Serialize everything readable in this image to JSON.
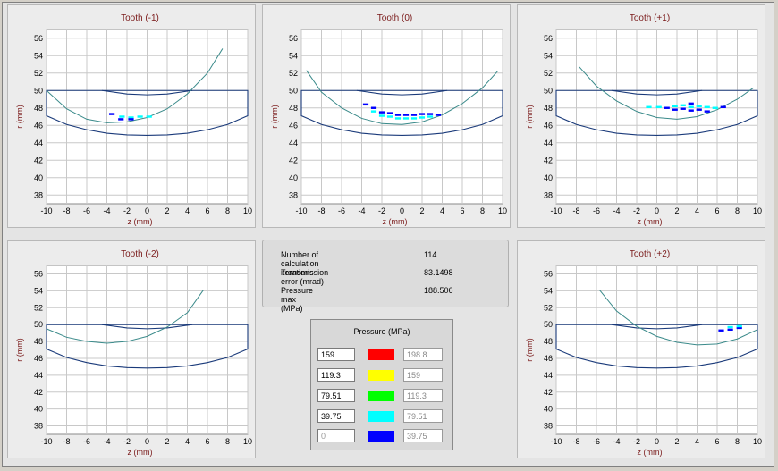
{
  "chart_data": [
    {
      "type": "scatter",
      "title": "Tooth (-1)",
      "xlabel": "z (mm)",
      "ylabel": "r (mm)",
      "xlim": [
        -10,
        10
      ],
      "ylim": [
        37,
        57
      ],
      "xticks": [
        "-10",
        "-8",
        "-6",
        "-4",
        "-2",
        "0",
        "2",
        "4",
        "6",
        "8",
        "10"
      ],
      "yticks": [
        "38",
        "40",
        "42",
        "44",
        "46",
        "48",
        "50",
        "52",
        "54",
        "56"
      ],
      "contact_curve": [
        [
          -10,
          50
        ],
        [
          -8,
          47.9
        ],
        [
          -6,
          46.7
        ],
        [
          -4,
          46.3
        ],
        [
          -2,
          46.4
        ],
        [
          0,
          46.9
        ],
        [
          2,
          47.9
        ],
        [
          4,
          49.6
        ],
        [
          6,
          52
        ],
        [
          7.5,
          54.8
        ]
      ],
      "pressure_cells": [
        {
          "z": -3.5,
          "r": 47.3,
          "p": 20
        },
        {
          "z": -2.5,
          "r": 47.0,
          "p": 50
        },
        {
          "z": -1.6,
          "r": 46.9,
          "p": 55
        },
        {
          "z": -0.7,
          "r": 47.0,
          "p": 65
        },
        {
          "z": 0.2,
          "r": 47.0,
          "p": 70
        },
        {
          "z": -2.6,
          "r": 46.7,
          "p": 10
        },
        {
          "z": -1.6,
          "r": 46.7,
          "p": 15
        }
      ]
    },
    {
      "type": "scatter",
      "title": "Tooth (0)",
      "xlabel": "z (mm)",
      "ylabel": "r (mm)",
      "xlim": [
        -10,
        10
      ],
      "ylim": [
        37,
        57
      ],
      "xticks": [
        "-10",
        "-8",
        "-6",
        "-4",
        "-2",
        "0",
        "2",
        "4",
        "6",
        "8",
        "10"
      ],
      "yticks": [
        "38",
        "40",
        "42",
        "44",
        "46",
        "48",
        "50",
        "52",
        "54",
        "56"
      ],
      "contact_curve": [
        [
          -9.5,
          52.3
        ],
        [
          -8,
          49.8
        ],
        [
          -6,
          48
        ],
        [
          -4,
          46.8
        ],
        [
          -2,
          46.2
        ],
        [
          0,
          46.1
        ],
        [
          2,
          46.4
        ],
        [
          4,
          47.2
        ],
        [
          6,
          48.5
        ],
        [
          8,
          50.3
        ],
        [
          9.5,
          52.2
        ]
      ],
      "pressure_cells": [
        {
          "z": -3.6,
          "r": 48.4,
          "p": 15
        },
        {
          "z": -2.8,
          "r": 48.0,
          "p": 15
        },
        {
          "z": -2.8,
          "r": 47.6,
          "p": 50
        },
        {
          "z": -2.0,
          "r": 47.5,
          "p": 15
        },
        {
          "z": -2.0,
          "r": 47.1,
          "p": 60
        },
        {
          "z": -1.2,
          "r": 47.4,
          "p": 15
        },
        {
          "z": -1.2,
          "r": 47.0,
          "p": 60
        },
        {
          "z": -0.4,
          "r": 47.2,
          "p": 15
        },
        {
          "z": -0.4,
          "r": 46.8,
          "p": 55
        },
        {
          "z": 0.4,
          "r": 47.2,
          "p": 10
        },
        {
          "z": 0.4,
          "r": 46.8,
          "p": 55
        },
        {
          "z": 1.2,
          "r": 47.2,
          "p": 15
        },
        {
          "z": 1.2,
          "r": 46.8,
          "p": 55
        },
        {
          "z": 2.0,
          "r": 47.3,
          "p": 15
        },
        {
          "z": 2.0,
          "r": 46.9,
          "p": 50
        },
        {
          "z": 2.8,
          "r": 47.3,
          "p": 15
        },
        {
          "z": 2.8,
          "r": 47.0,
          "p": 45
        },
        {
          "z": 3.6,
          "r": 47.2,
          "p": 15
        }
      ]
    },
    {
      "type": "scatter",
      "title": "Tooth (+1)",
      "xlabel": "z (mm)",
      "ylabel": "r (mm)",
      "xlim": [
        -10,
        10
      ],
      "ylim": [
        37,
        57
      ],
      "xticks": [
        "-10",
        "-8",
        "-6",
        "-4",
        "-2",
        "0",
        "2",
        "4",
        "6",
        "8",
        "10"
      ],
      "yticks": [
        "38",
        "40",
        "42",
        "44",
        "46",
        "48",
        "50",
        "52",
        "54",
        "56"
      ],
      "contact_curve": [
        [
          -7.7,
          52.7
        ],
        [
          -6,
          50.5
        ],
        [
          -4,
          48.8
        ],
        [
          -2,
          47.6
        ],
        [
          0,
          46.9
        ],
        [
          2,
          46.7
        ],
        [
          4,
          47
        ],
        [
          6,
          47.8
        ],
        [
          8,
          49
        ],
        [
          9.6,
          50.3
        ]
      ],
      "pressure_cells": [
        {
          "z": -0.8,
          "r": 48.1,
          "p": 50
        },
        {
          "z": 0.2,
          "r": 48.1,
          "p": 45
        },
        {
          "z": 1.0,
          "r": 48.0,
          "p": 15
        },
        {
          "z": 1.8,
          "r": 48.2,
          "p": 45
        },
        {
          "z": 1.8,
          "r": 47.8,
          "p": 20
        },
        {
          "z": 2.6,
          "r": 48.3,
          "p": 50
        },
        {
          "z": 2.6,
          "r": 47.9,
          "p": 20
        },
        {
          "z": 3.4,
          "r": 48.5,
          "p": 15
        },
        {
          "z": 3.4,
          "r": 48.1,
          "p": 50
        },
        {
          "z": 3.4,
          "r": 47.7,
          "p": 15
        },
        {
          "z": 4.2,
          "r": 48.2,
          "p": 50
        },
        {
          "z": 4.2,
          "r": 47.8,
          "p": 15
        },
        {
          "z": 5.0,
          "r": 48.1,
          "p": 45
        },
        {
          "z": 5.0,
          "r": 47.6,
          "p": 15
        },
        {
          "z": 5.8,
          "r": 48.0,
          "p": 40
        },
        {
          "z": 6.6,
          "r": 48.1,
          "p": 15
        }
      ]
    },
    {
      "type": "scatter",
      "title": "Tooth (-2)",
      "xlabel": "z (mm)",
      "ylabel": "r (mm)",
      "xlim": [
        -10,
        10
      ],
      "ylim": [
        37,
        57
      ],
      "xticks": [
        "-10",
        "-8",
        "-6",
        "-4",
        "-2",
        "0",
        "2",
        "4",
        "6",
        "8",
        "10"
      ],
      "yticks": [
        "38",
        "40",
        "42",
        "44",
        "46",
        "48",
        "50",
        "52",
        "54",
        "56"
      ],
      "contact_curve": [
        [
          -10,
          49.5
        ],
        [
          -8,
          48.5
        ],
        [
          -6,
          48
        ],
        [
          -4,
          47.8
        ],
        [
          -2,
          48
        ],
        [
          0,
          48.6
        ],
        [
          2,
          49.7
        ],
        [
          4,
          51.4
        ],
        [
          5.6,
          54.1
        ]
      ],
      "pressure_cells": []
    },
    {
      "type": "scatter",
      "title": "Tooth (+2)",
      "xlabel": "z (mm)",
      "ylabel": "r (mm)",
      "xlim": [
        -10,
        10
      ],
      "ylim": [
        37,
        57
      ],
      "xticks": [
        "-10",
        "-8",
        "-6",
        "-4",
        "-2",
        "0",
        "2",
        "4",
        "6",
        "8",
        "10"
      ],
      "yticks": [
        "38",
        "40",
        "42",
        "44",
        "46",
        "48",
        "50",
        "52",
        "54",
        "56"
      ],
      "contact_curve": [
        [
          -5.7,
          54.1
        ],
        [
          -4,
          51.6
        ],
        [
          -2,
          49.8
        ],
        [
          0,
          48.6
        ],
        [
          2,
          47.9
        ],
        [
          4,
          47.6
        ],
        [
          6,
          47.7
        ],
        [
          8,
          48.3
        ],
        [
          10,
          49.4
        ]
      ],
      "pressure_cells": [
        {
          "z": 6.4,
          "r": 49.3,
          "p": 10
        },
        {
          "z": 7.3,
          "r": 49.4,
          "p": 20
        },
        {
          "z": 7.3,
          "r": 49.7,
          "p": 45
        },
        {
          "z": 8.2,
          "r": 49.6,
          "p": 20
        },
        {
          "z": 8.2,
          "r": 49.8,
          "p": 50
        }
      ]
    }
  ],
  "profile": {
    "x": [
      -10,
      10
    ],
    "top": 50,
    "inner": [
      [
        -10,
        47.1
      ],
      [
        -8,
        46.1
      ],
      [
        -6,
        45.5
      ],
      [
        -4,
        45.1
      ],
      [
        -2,
        44.9
      ],
      [
        0,
        44.85
      ],
      [
        2,
        44.9
      ],
      [
        4,
        45.1
      ],
      [
        6,
        45.5
      ],
      [
        8,
        46.1
      ],
      [
        10,
        47.1
      ]
    ],
    "upper": [
      [
        -4.5,
        50
      ],
      [
        -2,
        49.6
      ],
      [
        0,
        49.5
      ],
      [
        2,
        49.6
      ],
      [
        4.5,
        50
      ]
    ]
  },
  "info": {
    "rows": [
      {
        "label": "Number of calculation iterations",
        "value": "114"
      },
      {
        "label": "Transmission error (mrad)",
        "value": "83.1498"
      },
      {
        "label": "Pressure max (MPa)",
        "value": "188.506"
      }
    ]
  },
  "legend": {
    "title": "Pressure (MPa)",
    "rows": [
      {
        "min": "159",
        "color": "#ff0000",
        "max": "198.8",
        "min_enabled": true
      },
      {
        "min": "119.3",
        "color": "#ffff00",
        "max": "159",
        "min_enabled": true
      },
      {
        "min": "79.51",
        "color": "#00ff00",
        "max": "119.3",
        "min_enabled": true
      },
      {
        "min": "39.75",
        "color": "#00ffff",
        "max": "79.51",
        "min_enabled": true
      },
      {
        "min": "0",
        "color": "#0000ff",
        "max": "39.75",
        "min_enabled": false
      }
    ]
  },
  "colors": {
    "grid": "#c8c8c8",
    "profile": "#1a3a7a",
    "curve": "#3a8a8a",
    "axis_text": "#7a1a1a"
  }
}
